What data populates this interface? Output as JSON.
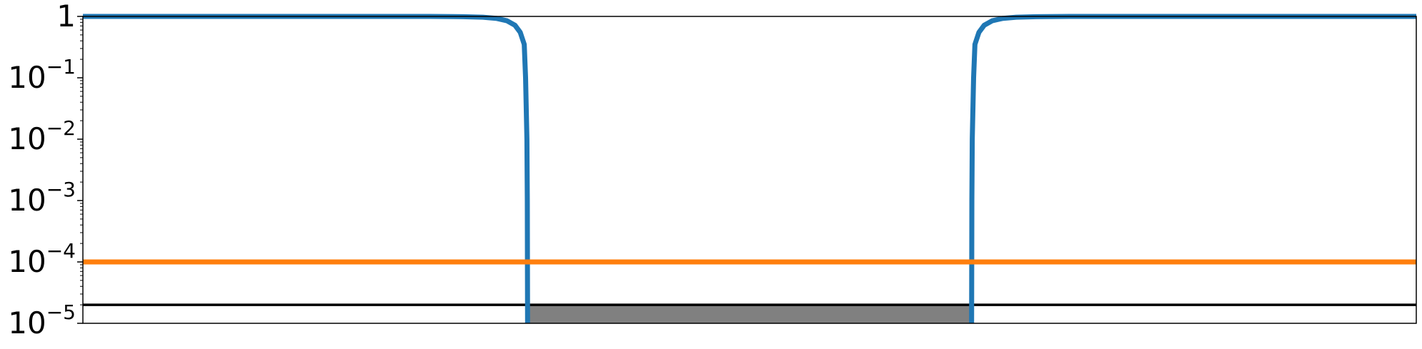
{
  "chart_data": {
    "type": "line",
    "title": "",
    "xlabel": "",
    "ylabel": "",
    "y_scale": "log",
    "ylim": [
      1e-05,
      1
    ],
    "xlim": [
      0,
      1
    ],
    "x_ticks_visible": false,
    "grid": false,
    "legend": "none",
    "y_ticks": [
      {
        "value": 1,
        "base": "1",
        "exp": ""
      },
      {
        "value": 0.1,
        "base": "10",
        "exp": "−1"
      },
      {
        "value": 0.01,
        "base": "10",
        "exp": "−2"
      },
      {
        "value": 0.001,
        "base": "10",
        "exp": "−3"
      },
      {
        "value": 0.0001,
        "base": "10",
        "exp": "−4"
      },
      {
        "value": 1e-05,
        "base": "10",
        "exp": "−5"
      }
    ],
    "series": [
      {
        "color": "#1f77b4",
        "role": "curve",
        "segments": [
          [
            [
              0.0,
              1.0
            ],
            [
              0.26,
              1.0
            ],
            [
              0.285,
              0.99
            ],
            [
              0.3,
              0.97
            ],
            [
              0.31,
              0.93
            ],
            [
              0.318,
              0.85
            ],
            [
              0.324,
              0.72
            ],
            [
              0.328,
              0.55
            ],
            [
              0.331,
              0.35
            ],
            [
              0.332,
              0.1
            ],
            [
              0.333,
              0.01
            ],
            [
              0.3333,
              0.001
            ],
            [
              0.3334,
              0.0001
            ],
            [
              0.3335,
              1e-05
            ]
          ],
          [
            [
              0.6665,
              1e-05
            ],
            [
              0.6666,
              0.0001
            ],
            [
              0.6667,
              0.001
            ],
            [
              0.667,
              0.01
            ],
            [
              0.668,
              0.1
            ],
            [
              0.669,
              0.35
            ],
            [
              0.672,
              0.55
            ],
            [
              0.676,
              0.72
            ],
            [
              0.682,
              0.85
            ],
            [
              0.69,
              0.93
            ],
            [
              0.7,
              0.97
            ],
            [
              0.715,
              0.99
            ],
            [
              0.74,
              1.0
            ],
            [
              1.0,
              1.0
            ]
          ]
        ]
      },
      {
        "color": "#ff7f0e",
        "role": "constant-line",
        "points": [
          [
            0,
            0.0001
          ],
          [
            1,
            0.0001
          ]
        ]
      }
    ],
    "reference_lines": [
      {
        "y": 2e-05,
        "color": "#000000"
      }
    ],
    "shaded_region": {
      "x0": 0.3335,
      "x1": 0.6665,
      "y0": 1e-05,
      "y1": 2e-05,
      "color": "#808080"
    }
  }
}
